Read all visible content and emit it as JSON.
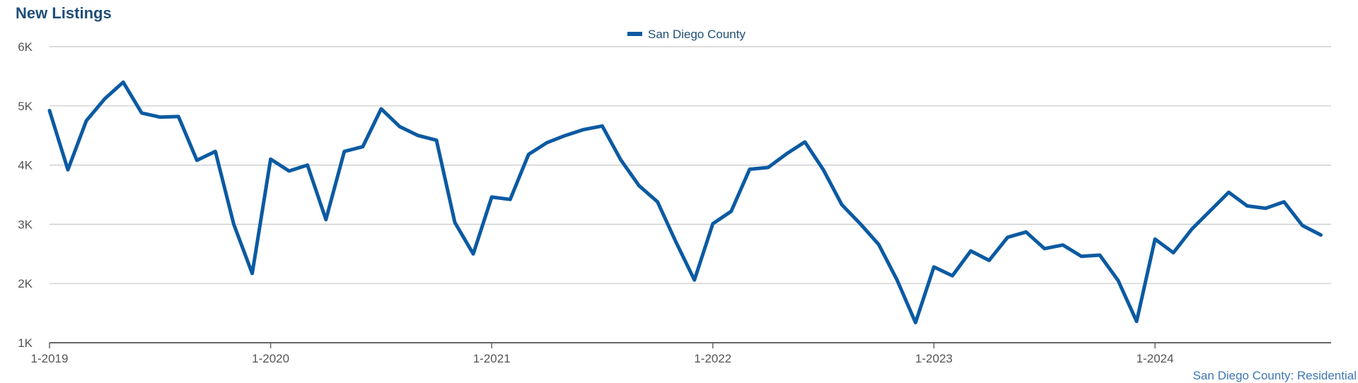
{
  "header": {
    "title": "New Listings"
  },
  "footer": {
    "source": "San Diego County: Residential"
  },
  "colors": {
    "line": "#0b5aa2",
    "grid": "#c8c8c8",
    "axis": "#666666",
    "tick_text": "#555555"
  },
  "chart_data": {
    "type": "line",
    "title": "New Listings",
    "xlabel": "",
    "ylabel": "",
    "ylim": [
      1000,
      6000
    ],
    "y_ticks": [
      1000,
      2000,
      3000,
      4000,
      5000,
      6000
    ],
    "y_tick_labels": [
      "1K",
      "2K",
      "3K",
      "4K",
      "5K",
      "6K"
    ],
    "x_tick_labels": [
      "1-2019",
      "1-2020",
      "1-2021",
      "1-2022",
      "1-2023",
      "1-2024"
    ],
    "x_tick_indices": [
      0,
      12,
      24,
      36,
      48,
      60
    ],
    "grid": true,
    "legend_position": "top-center",
    "series": [
      {
        "name": "San Diego County",
        "values": [
          4920,
          3920,
          4750,
          5120,
          5400,
          4880,
          4810,
          4820,
          4080,
          4230,
          3000,
          2170,
          4100,
          3900,
          4000,
          3080,
          4230,
          4310,
          4950,
          4650,
          4500,
          4420,
          3030,
          2500,
          3460,
          3420,
          4180,
          4380,
          4500,
          4600,
          4660,
          4090,
          3650,
          3380,
          2700,
          2060,
          3010,
          3220,
          3930,
          3960,
          4190,
          4390,
          3920,
          3330,
          3010,
          2660,
          2060,
          1340,
          2280,
          2130,
          2550,
          2390,
          2780,
          2870,
          2590,
          2650,
          2460,
          2480,
          2050,
          1360,
          2750,
          2520,
          2920,
          3230,
          3540,
          3310,
          3270,
          3380,
          2980,
          2820
        ]
      }
    ]
  }
}
